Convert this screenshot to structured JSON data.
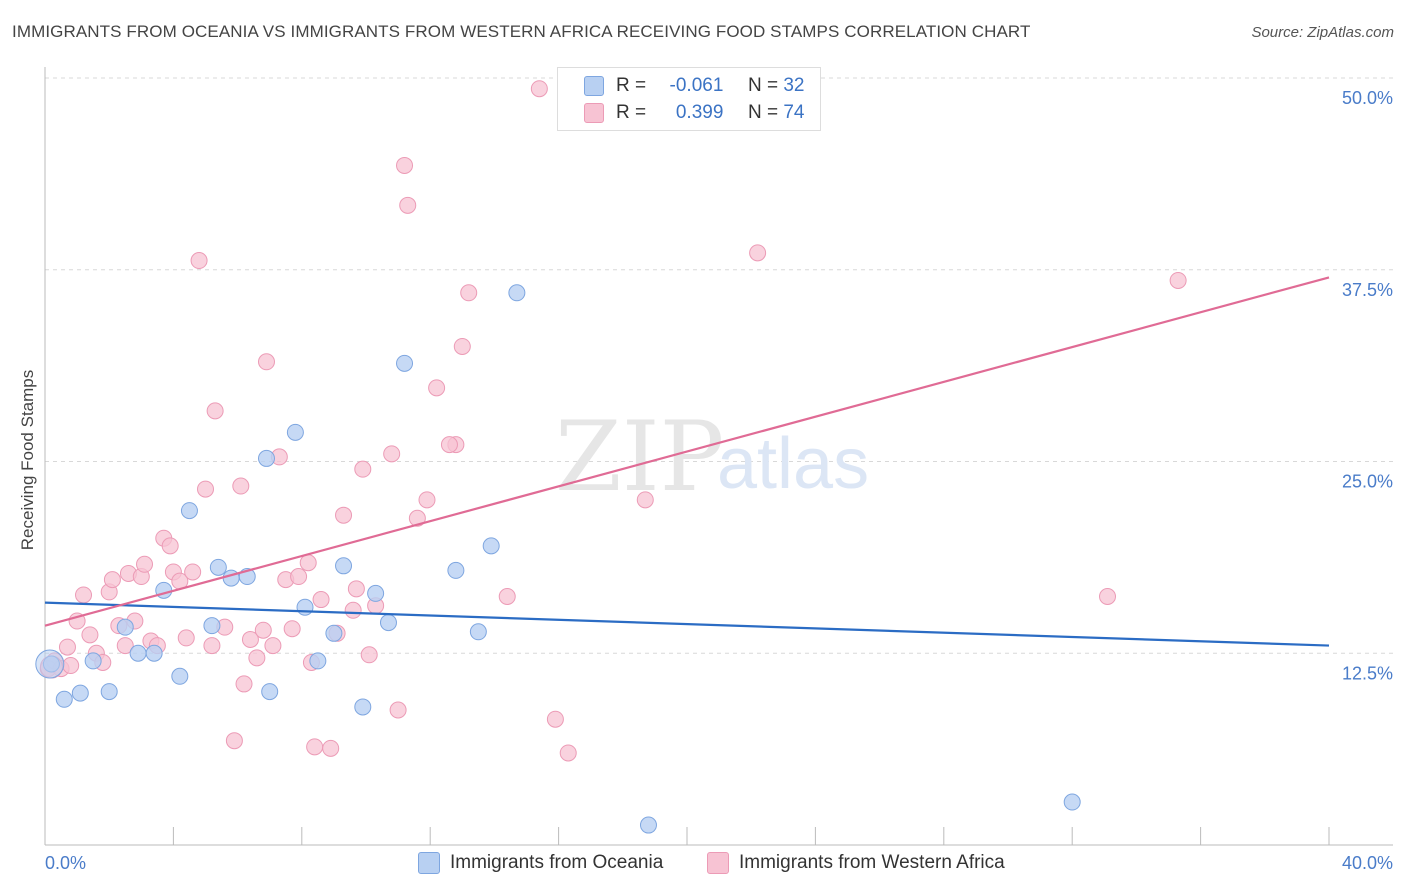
{
  "title": "IMMIGRANTS FROM OCEANIA VS IMMIGRANTS FROM WESTERN AFRICA RECEIVING FOOD STAMPS CORRELATION CHART",
  "source": "Source: ZipAtlas.com",
  "watermark": {
    "zip": "ZIP",
    "atlas": "atlas"
  },
  "legend": {
    "r_label": "R =",
    "n_label": "N =",
    "oceania": {
      "r": "-0.061",
      "n": "32"
    },
    "western_africa": {
      "r": "0.399",
      "n": "74"
    }
  },
  "colors": {
    "oceania_fill": "#b8d0f2",
    "oceania_stroke": "#7ea6e0",
    "oceania_line": "#2b6cc4",
    "wafrica_fill": "#f7c3d3",
    "wafrica_stroke": "#ec9bb6",
    "wafrica_line": "#e06b95",
    "tick_label": "#4a7cc9"
  },
  "chart_data": {
    "type": "scatter",
    "xlabel": "",
    "ylabel": "Receiving Food Stamps",
    "xlim": [
      0,
      40
    ],
    "ylim": [
      0,
      50
    ],
    "x_tick_labels": [
      "0.0%",
      "40.0%"
    ],
    "y_ticks": [
      12.5,
      25.0,
      37.5,
      50.0
    ],
    "y_tick_labels": [
      "12.5%",
      "25.0%",
      "37.5%",
      "50.0%"
    ],
    "grid": true,
    "legend_position": "top-center",
    "series": [
      {
        "name": "Immigrants from Oceania",
        "trend": {
          "x": [
            0,
            40
          ],
          "y": [
            15.8,
            13.0
          ]
        },
        "points": [
          [
            0.2,
            11.8
          ],
          [
            0.6,
            9.5
          ],
          [
            1.1,
            9.9
          ],
          [
            1.5,
            12.0
          ],
          [
            2.0,
            10.0
          ],
          [
            2.5,
            14.2
          ],
          [
            2.9,
            12.5
          ],
          [
            3.4,
            12.5
          ],
          [
            3.7,
            16.6
          ],
          [
            4.2,
            11.0
          ],
          [
            4.5,
            21.8
          ],
          [
            5.2,
            14.3
          ],
          [
            5.4,
            18.1
          ],
          [
            5.8,
            17.4
          ],
          [
            6.3,
            17.5
          ],
          [
            6.9,
            25.2
          ],
          [
            7.0,
            10.0
          ],
          [
            7.8,
            26.9
          ],
          [
            8.1,
            15.5
          ],
          [
            8.5,
            12.0
          ],
          [
            9.0,
            13.8
          ],
          [
            9.3,
            18.2
          ],
          [
            9.9,
            9.0
          ],
          [
            10.3,
            16.4
          ],
          [
            10.7,
            14.5
          ],
          [
            11.2,
            31.4
          ],
          [
            12.8,
            17.9
          ],
          [
            13.5,
            13.9
          ],
          [
            13.9,
            19.5
          ],
          [
            14.7,
            36.0
          ],
          [
            18.8,
            1.3
          ],
          [
            32.0,
            2.8
          ]
        ]
      },
      {
        "name": "Immigrants from Western Africa",
        "trend": {
          "x": [
            0,
            40
          ],
          "y": [
            14.3,
            37.0
          ]
        },
        "points": [
          [
            0.1,
            11.5
          ],
          [
            0.3,
            12.0
          ],
          [
            0.5,
            11.5
          ],
          [
            0.7,
            12.9
          ],
          [
            0.8,
            11.7
          ],
          [
            1.0,
            14.6
          ],
          [
            1.2,
            16.3
          ],
          [
            1.4,
            13.7
          ],
          [
            1.6,
            12.5
          ],
          [
            1.8,
            11.9
          ],
          [
            2.0,
            16.5
          ],
          [
            2.1,
            17.3
          ],
          [
            2.3,
            14.3
          ],
          [
            2.5,
            13.0
          ],
          [
            2.6,
            17.7
          ],
          [
            2.8,
            14.6
          ],
          [
            3.0,
            17.5
          ],
          [
            3.1,
            18.3
          ],
          [
            3.3,
            13.3
          ],
          [
            3.5,
            13.0
          ],
          [
            3.7,
            20.0
          ],
          [
            3.9,
            19.5
          ],
          [
            4.0,
            17.8
          ],
          [
            4.2,
            17.2
          ],
          [
            4.4,
            13.5
          ],
          [
            4.6,
            17.8
          ],
          [
            4.8,
            38.1
          ],
          [
            5.0,
            23.2
          ],
          [
            5.2,
            13.0
          ],
          [
            5.3,
            28.3
          ],
          [
            5.6,
            14.2
          ],
          [
            5.9,
            6.8
          ],
          [
            6.1,
            23.4
          ],
          [
            6.2,
            10.5
          ],
          [
            6.4,
            13.4
          ],
          [
            6.6,
            12.2
          ],
          [
            6.8,
            14.0
          ],
          [
            6.9,
            31.5
          ],
          [
            7.1,
            13.0
          ],
          [
            7.3,
            25.3
          ],
          [
            7.5,
            17.3
          ],
          [
            7.7,
            14.1
          ],
          [
            7.9,
            17.5
          ],
          [
            8.2,
            18.4
          ],
          [
            8.3,
            11.9
          ],
          [
            8.4,
            6.4
          ],
          [
            8.6,
            16.0
          ],
          [
            8.9,
            6.3
          ],
          [
            9.1,
            13.8
          ],
          [
            9.3,
            21.5
          ],
          [
            9.6,
            15.3
          ],
          [
            9.7,
            16.7
          ],
          [
            9.9,
            24.5
          ],
          [
            10.1,
            12.4
          ],
          [
            10.3,
            15.6
          ],
          [
            10.8,
            25.5
          ],
          [
            11.0,
            8.8
          ],
          [
            11.2,
            44.3
          ],
          [
            11.3,
            41.7
          ],
          [
            11.6,
            21.3
          ],
          [
            11.9,
            22.5
          ],
          [
            12.2,
            29.8
          ],
          [
            12.8,
            26.1
          ],
          [
            13.0,
            32.5
          ],
          [
            13.2,
            36.0
          ],
          [
            14.4,
            16.2
          ],
          [
            15.4,
            49.3
          ],
          [
            15.9,
            8.2
          ],
          [
            16.3,
            6.0
          ],
          [
            18.7,
            22.5
          ],
          [
            22.2,
            38.6
          ],
          [
            33.1,
            16.2
          ],
          [
            35.3,
            36.8
          ],
          [
            12.6,
            26.1
          ]
        ]
      }
    ]
  },
  "bottom_legend": {
    "oceania": "Immigrants from Oceania",
    "western_africa": "Immigrants from Western Africa"
  }
}
